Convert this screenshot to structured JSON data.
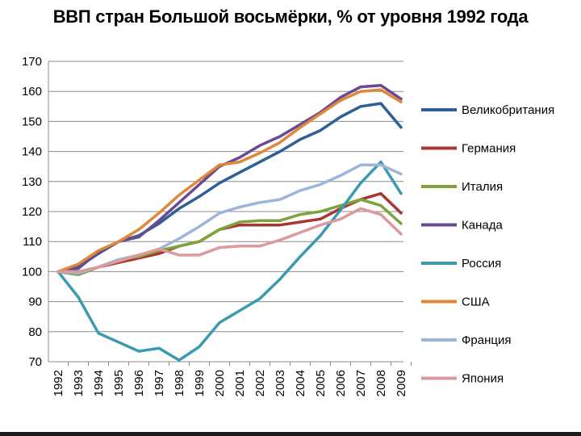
{
  "chart_data": {
    "type": "line",
    "title": "ВВП стран Большой восьмёрки, % от уровня 1992 года",
    "xlabel": "",
    "ylabel": "",
    "ylim": [
      70,
      170
    ],
    "y_ticks": [
      70,
      80,
      90,
      100,
      110,
      120,
      130,
      140,
      150,
      160,
      170
    ],
    "categories": [
      "1992",
      "1993",
      "1994",
      "1995",
      "1996",
      "1997",
      "1998",
      "1999",
      "2000",
      "2001",
      "2002",
      "2003",
      "2004",
      "2005",
      "2006",
      "2007",
      "2008",
      "2009"
    ],
    "grid": "horizontal",
    "legend_position": "right",
    "series": [
      {
        "name": "Великобритания",
        "color": "#2e5f96",
        "values": [
          100,
          101.5,
          106,
          110,
          112,
          116,
          121,
          125,
          129.5,
          133,
          136.5,
          140,
          144,
          147,
          151.5,
          155,
          156,
          148
        ]
      },
      {
        "name": "Германия",
        "color": "#a93632",
        "values": [
          100,
          99,
          101.5,
          103,
          104.5,
          106,
          108.5,
          110,
          114,
          115.5,
          115.5,
          115.5,
          116.5,
          117.5,
          121,
          124,
          126,
          119.5
        ]
      },
      {
        "name": "Италия",
        "color": "#7ea33a",
        "values": [
          100,
          99,
          101.5,
          104,
          105,
          107,
          108.5,
          110,
          114,
          116.5,
          117,
          117,
          119,
          120,
          122,
          124,
          122,
          116
        ]
      },
      {
        "name": "Канада",
        "color": "#6a4a93",
        "values": [
          100,
          101,
          106.5,
          110,
          111.5,
          117,
          123,
          129,
          135,
          138,
          142,
          145,
          149,
          153,
          158,
          161.5,
          162,
          157.5
        ]
      },
      {
        "name": "Россия",
        "color": "#3a9bb0",
        "values": [
          100,
          91.5,
          79.5,
          76.5,
          73.5,
          74.5,
          70.5,
          75,
          83,
          87,
          91,
          97.5,
          105,
          112,
          120.5,
          129.5,
          136.5,
          126
        ]
      },
      {
        "name": "США",
        "color": "#e1873a",
        "values": [
          100,
          102.5,
          107,
          110,
          114,
          119.5,
          125.5,
          130.5,
          135.5,
          136.5,
          139.5,
          143,
          148,
          152.5,
          157,
          160,
          160.5,
          156.5
        ]
      },
      {
        "name": "Франция",
        "color": "#9db5d9",
        "values": [
          100,
          99.5,
          101.5,
          104,
          105.5,
          107.5,
          111,
          115,
          119.5,
          121.5,
          123,
          124,
          127,
          129,
          132,
          135.5,
          135.5,
          132.5
        ]
      },
      {
        "name": "Япония",
        "color": "#dc9a9a",
        "values": [
          100,
          100,
          101.5,
          103.5,
          105.5,
          107.5,
          105.5,
          105.5,
          108,
          108.5,
          108.5,
          110.5,
          113,
          115.5,
          117.5,
          121,
          119,
          112.5
        ]
      }
    ]
  }
}
